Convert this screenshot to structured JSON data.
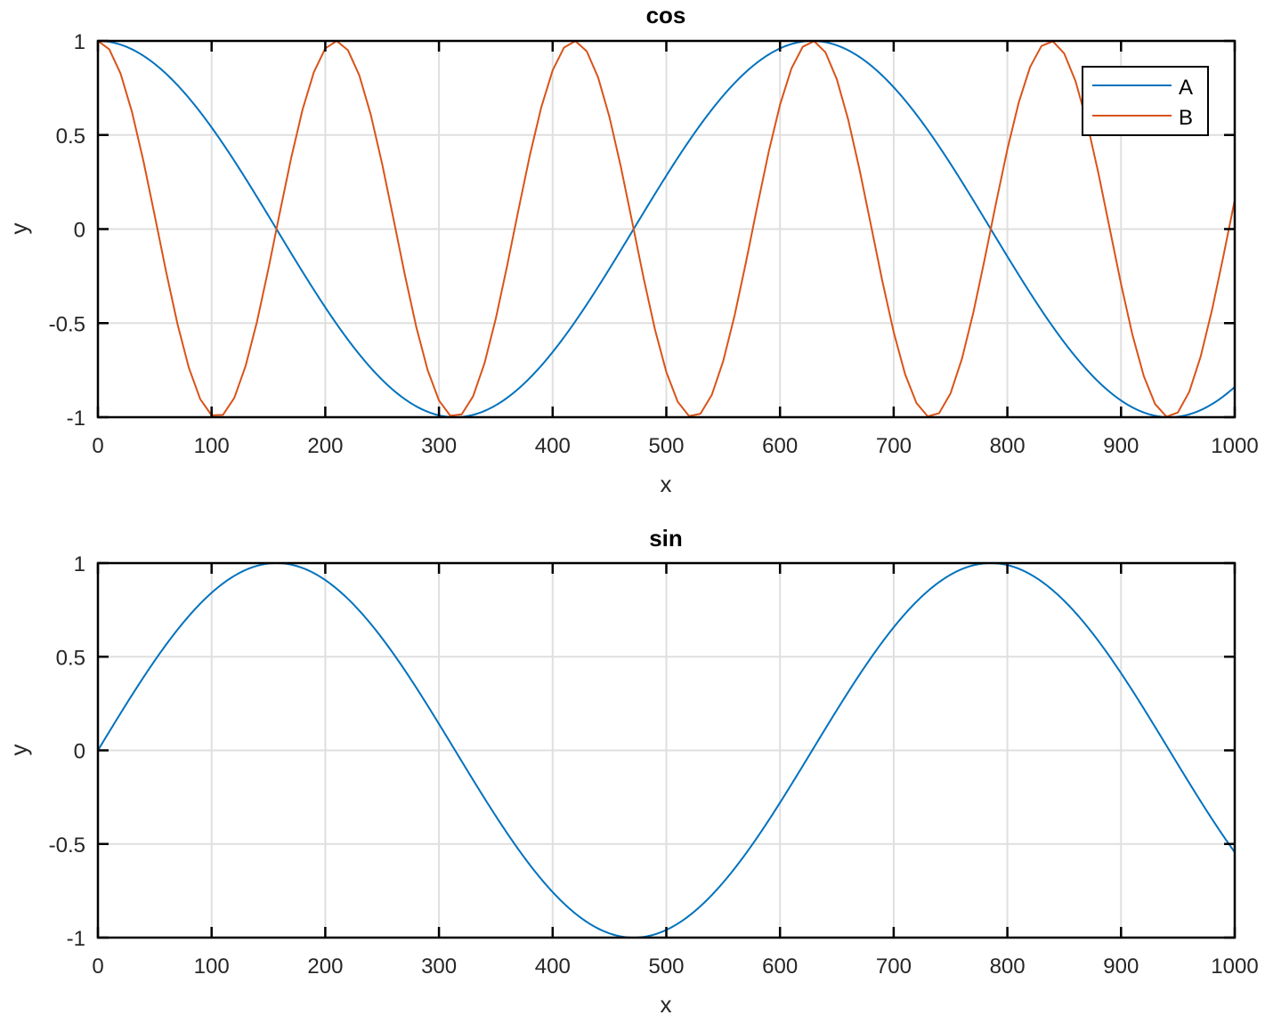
{
  "chart_data": [
    {
      "type": "line",
      "title": "cos",
      "xlabel": "x",
      "ylabel": "y",
      "xlim": [
        0,
        1000
      ],
      "ylim": [
        -1,
        1
      ],
      "xticks": [
        0,
        100,
        200,
        300,
        400,
        500,
        600,
        700,
        800,
        900,
        1000
      ],
      "xtick_labels": [
        "0",
        "100",
        "200",
        "300",
        "400",
        "500",
        "600",
        "700",
        "800",
        "900",
        "1000"
      ],
      "yticks": [
        1,
        0.5,
        0,
        -0.5,
        -1
      ],
      "ytick_labels": [
        "1",
        "0.5",
        "0",
        "-0.5",
        "-1"
      ],
      "grid": true,
      "legend": {
        "position": "upper right",
        "entries": [
          "A",
          "B"
        ]
      },
      "series": [
        {
          "name": "A",
          "color": "#0072BD",
          "function": "cos(x/100)",
          "x_step": 1,
          "x": [
            0,
            100,
            200,
            300,
            400,
            500,
            600,
            700,
            800,
            900,
            1000
          ],
          "values": [
            1.0,
            0.54,
            -0.416,
            -0.99,
            -0.654,
            0.284,
            0.96,
            0.754,
            -0.146,
            -0.911,
            -0.839
          ]
        },
        {
          "name": "B",
          "color": "#D95319",
          "function": "cos(3x/100)",
          "x_step": 10,
          "x": [
            0,
            100,
            200,
            300,
            400,
            500,
            600,
            700,
            800,
            900,
            1000
          ],
          "values": [
            1.0,
            -0.99,
            0.96,
            -0.911,
            0.844,
            -0.76,
            0.66,
            -0.548,
            0.424,
            -0.292,
            0.154
          ]
        }
      ]
    },
    {
      "type": "line",
      "title": "sin",
      "xlabel": "x",
      "ylabel": "y",
      "xlim": [
        0,
        1000
      ],
      "ylim": [
        -1,
        1
      ],
      "xticks": [
        0,
        100,
        200,
        300,
        400,
        500,
        600,
        700,
        800,
        900,
        1000
      ],
      "xtick_labels": [
        "0",
        "100",
        "200",
        "300",
        "400",
        "500",
        "600",
        "700",
        "800",
        "900",
        "1000"
      ],
      "yticks": [
        1,
        0.5,
        0,
        -0.5,
        -1
      ],
      "ytick_labels": [
        "1",
        "0.5",
        "0",
        "-0.5",
        "-1"
      ],
      "grid": true,
      "series": [
        {
          "name": "sin",
          "color": "#0072BD",
          "function": "sin(x/100)",
          "x_step": 1,
          "x": [
            0,
            100,
            200,
            300,
            400,
            500,
            600,
            700,
            800,
            900,
            1000
          ],
          "values": [
            0.0,
            0.841,
            0.909,
            0.141,
            -0.757,
            -0.959,
            -0.279,
            0.657,
            0.989,
            0.412,
            -0.544
          ]
        }
      ]
    }
  ]
}
